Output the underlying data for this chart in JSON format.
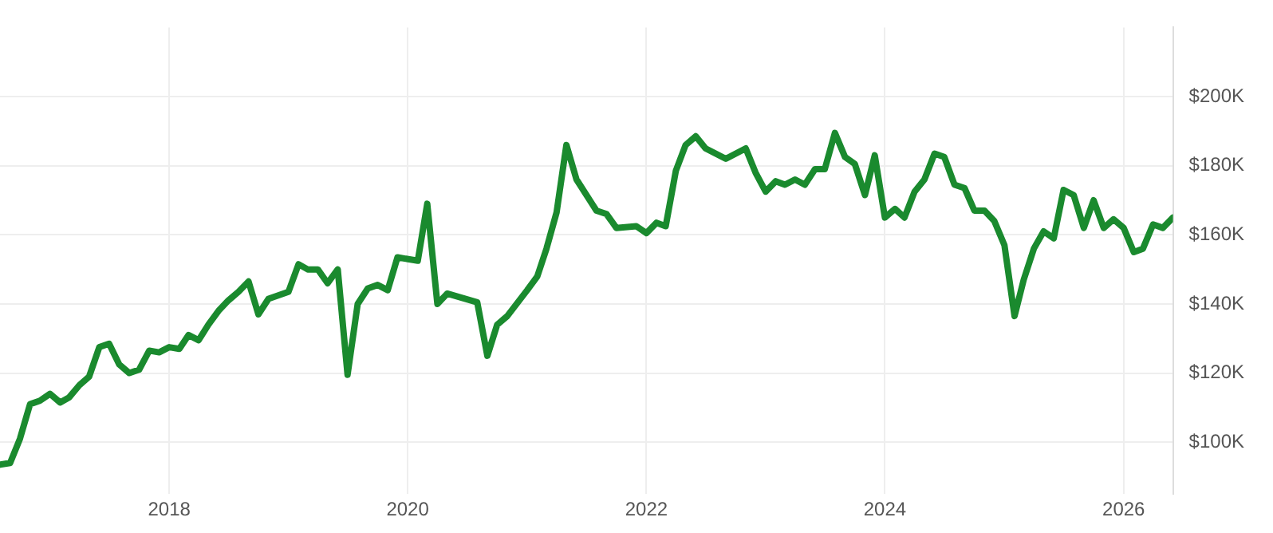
{
  "chart_data": {
    "type": "line",
    "x": [
      "2016-08",
      "2016-09",
      "2016-10",
      "2016-11",
      "2016-12",
      "2017-01",
      "2017-02",
      "2017-03",
      "2017-04",
      "2017-05",
      "2017-06",
      "2017-07",
      "2017-08",
      "2017-09",
      "2017-10",
      "2017-11",
      "2017-12",
      "2018-01",
      "2018-02",
      "2018-03",
      "2018-04",
      "2018-05",
      "2018-06",
      "2018-07",
      "2018-08",
      "2018-09",
      "2018-10",
      "2018-11",
      "2019-01",
      "2019-02",
      "2019-03",
      "2019-04",
      "2019-05",
      "2019-06",
      "2019-07",
      "2019-08",
      "2019-09",
      "2019-10",
      "2019-11",
      "2019-12",
      "2020-02",
      "2020-03",
      "2020-04",
      "2020-05",
      "2020-08",
      "2020-09",
      "2020-10",
      "2020-11",
      "2021-01",
      "2021-02",
      "2021-03",
      "2021-04",
      "2021-05",
      "2021-06",
      "2021-08",
      "2021-09",
      "2021-10",
      "2021-12",
      "2022-01",
      "2022-02",
      "2022-03",
      "2022-04",
      "2022-05",
      "2022-06",
      "2022-07",
      "2022-09",
      "2022-11",
      "2022-12",
      "2023-01",
      "2023-02",
      "2023-03",
      "2023-04",
      "2023-05",
      "2023-06",
      "2023-07",
      "2023-08",
      "2023-09",
      "2023-10",
      "2023-11",
      "2023-12",
      "2024-01",
      "2024-02",
      "2024-03",
      "2024-04",
      "2024-05",
      "2024-06",
      "2024-07",
      "2024-08",
      "2024-09",
      "2024-10",
      "2024-11",
      "2024-12",
      "2025-01",
      "2025-02",
      "2025-03",
      "2025-04",
      "2025-05",
      "2025-06",
      "2025-07",
      "2025-08",
      "2025-09",
      "2025-10",
      "2025-11",
      "2025-12",
      "2026-01",
      "2026-02",
      "2026-03",
      "2026-04",
      "2026-05",
      "2026-06"
    ],
    "series": [
      {
        "color": "#1a8a2e",
        "values": [
          93.5,
          94,
          101,
          111,
          112,
          114,
          111.5,
          113,
          116.5,
          119,
          127.5,
          128.5,
          122.5,
          120,
          121,
          126.5,
          126,
          127.5,
          127,
          131,
          129.5,
          134,
          138,
          141,
          143.5,
          146.5,
          137,
          141.5,
          143.5,
          151.5,
          150,
          150,
          146,
          150,
          119.5,
          140,
          144.5,
          145.5,
          144,
          153.5,
          152.5,
          169,
          140,
          143,
          140.5,
          125,
          134,
          136.5,
          144,
          148,
          156,
          166.5,
          186,
          176,
          167,
          166,
          162,
          162.5,
          160.5,
          163.5,
          162.5,
          178.5,
          186,
          188.5,
          185,
          182,
          185,
          178,
          172.5,
          175.5,
          174.5,
          176,
          174.5,
          179,
          179,
          189.5,
          182.5,
          180.5,
          171.5,
          183,
          165,
          167.5,
          165,
          172.5,
          176,
          183.5,
          182.5,
          174.5,
          173.5,
          167,
          167,
          164,
          157,
          136.5,
          147,
          156,
          161,
          159,
          173,
          171.5,
          162,
          170,
          162,
          164.5,
          162,
          155,
          156,
          163,
          162,
          165
        ]
      }
    ],
    "xlim": [
      "2016-08",
      "2026-06"
    ],
    "xticks": [
      "2018",
      "2020",
      "2022",
      "2024",
      "2026"
    ],
    "ylim": [
      85,
      220
    ],
    "yticks": [
      {
        "value": 100,
        "label": "$100K"
      },
      {
        "value": 120,
        "label": "$120K"
      },
      {
        "value": 140,
        "label": "$140K"
      },
      {
        "value": 160,
        "label": "$160K"
      },
      {
        "value": 180,
        "label": "$180K"
      },
      {
        "value": 200,
        "label": "$200K"
      }
    ],
    "grid": true,
    "legend": false,
    "marker": "none",
    "line_style": "solid"
  }
}
